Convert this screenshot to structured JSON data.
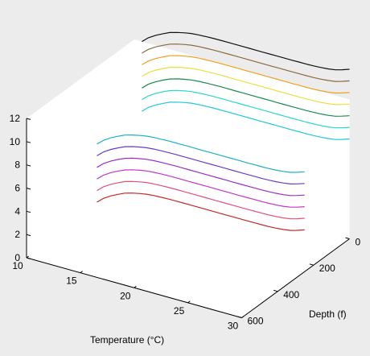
{
  "chart_data": {
    "type": "line",
    "projection": "3d",
    "title": "",
    "xlabel": "Temperature (°C)",
    "ylabel": "Depth (f)",
    "zlabel": "",
    "xlim": [
      10,
      30
    ],
    "ylim": [
      0,
      600
    ],
    "zlim": [
      0,
      12
    ],
    "x_ticks": [
      "10",
      "15",
      "20",
      "25",
      "30"
    ],
    "y_ticks": [
      "0",
      "200",
      "400",
      "600"
    ],
    "z_ticks": [
      "0",
      "2",
      "4",
      "6",
      "8",
      "10",
      "12"
    ],
    "grid": false,
    "x": [
      10.7,
      11.3,
      12,
      12.7,
      13.3,
      14,
      14.7,
      15.3,
      16,
      16.7,
      17.3,
      18,
      18.7,
      19.3,
      20,
      20.7,
      21.3,
      22,
      22.7,
      23.3,
      24,
      24.7,
      25.3,
      26,
      26.7,
      27.3,
      28,
      28.7,
      29.3,
      30
    ],
    "series": [
      {
        "color": "#c62828",
        "depth": 250,
        "values": [
          1.0,
          1.48,
          1.88,
          2.2,
          2.45,
          2.64,
          2.78,
          2.88,
          2.94,
          2.97,
          2.99,
          3.0,
          3.0,
          3.0,
          3.0,
          3.0,
          3.0,
          3.0,
          3.0,
          3.0,
          3.0,
          3.0,
          3.01,
          3.01,
          3.03,
          3.06,
          3.12,
          3.22,
          3.38,
          3.6
        ]
      },
      {
        "color": "#e0507a",
        "depth": 250,
        "values": [
          2.0,
          2.48,
          2.88,
          3.2,
          3.45,
          3.64,
          3.78,
          3.88,
          3.94,
          3.97,
          3.99,
          4.0,
          4.0,
          4.0,
          4.0,
          4.0,
          4.0,
          4.0,
          4.0,
          4.0,
          4.0,
          4.0,
          4.01,
          4.01,
          4.03,
          4.06,
          4.12,
          4.22,
          4.38,
          4.6
        ]
      },
      {
        "color": "#c238c2",
        "depth": 250,
        "values": [
          3.0,
          3.48,
          3.88,
          4.2,
          4.45,
          4.64,
          4.78,
          4.88,
          4.94,
          4.97,
          4.99,
          5.0,
          5.0,
          5.0,
          5.0,
          5.0,
          5.0,
          5.0,
          5.0,
          5.0,
          5.0,
          5.0,
          5.01,
          5.01,
          5.03,
          5.06,
          5.12,
          5.22,
          5.38,
          5.6
        ]
      },
      {
        "color": "#9a2ec8",
        "depth": 250,
        "values": [
          4.0,
          4.48,
          4.88,
          5.2,
          5.45,
          5.64,
          5.78,
          5.88,
          5.94,
          5.97,
          5.99,
          6.0,
          6.0,
          6.0,
          6.0,
          6.0,
          6.0,
          6.0,
          6.0,
          6.0,
          6.0,
          6.0,
          6.01,
          6.01,
          6.03,
          6.06,
          6.12,
          6.22,
          6.38,
          6.6
        ]
      },
      {
        "color": "#6a3cc8",
        "depth": 250,
        "values": [
          5.0,
          5.48,
          5.88,
          6.2,
          6.45,
          6.64,
          6.78,
          6.88,
          6.94,
          6.97,
          6.99,
          7.0,
          7.0,
          7.0,
          7.0,
          7.0,
          7.0,
          7.0,
          7.0,
          7.0,
          7.0,
          7.0,
          7.01,
          7.01,
          7.03,
          7.06,
          7.12,
          7.22,
          7.38,
          7.6
        ]
      },
      {
        "color": "#1cb0c8",
        "depth": 250,
        "values": [
          6.0,
          6.48,
          6.88,
          7.2,
          7.45,
          7.64,
          7.78,
          7.88,
          7.94,
          7.97,
          7.99,
          8.0,
          8.0,
          8.0,
          8.0,
          8.0,
          8.0,
          8.0,
          8.0,
          8.0,
          8.0,
          8.0,
          8.01,
          8.01,
          8.03,
          8.06,
          8.12,
          8.22,
          8.38,
          8.6
        ]
      },
      {
        "color": "#20c8d8",
        "depth": 0,
        "values": [
          6.0,
          6.48,
          6.88,
          7.2,
          7.45,
          7.64,
          7.78,
          7.88,
          7.94,
          7.97,
          7.99,
          8.0,
          8.0,
          8.0,
          8.0,
          8.0,
          8.0,
          8.0,
          8.0,
          8.0,
          8.0,
          8.0,
          8.01,
          8.01,
          8.03,
          8.06,
          8.12,
          8.22,
          8.38,
          8.6
        ]
      },
      {
        "color": "#28d8c8",
        "depth": 0,
        "values": [
          7.0,
          7.48,
          7.88,
          8.2,
          8.45,
          8.64,
          8.78,
          8.88,
          8.94,
          8.97,
          8.99,
          9.0,
          9.0,
          9.0,
          9.0,
          9.0,
          9.0,
          9.0,
          9.0,
          9.0,
          9.0,
          9.0,
          9.01,
          9.01,
          9.03,
          9.06,
          9.12,
          9.22,
          9.38,
          9.6
        ]
      },
      {
        "color": "#1a8a4a",
        "depth": 0,
        "values": [
          8.0,
          8.48,
          8.88,
          9.2,
          9.45,
          9.64,
          9.78,
          9.88,
          9.94,
          9.97,
          9.99,
          10.0,
          10.0,
          10.0,
          10.0,
          10.0,
          10.0,
          10.0,
          10.0,
          10.0,
          10.0,
          10.0,
          10.01,
          10.01,
          10.03,
          10.06,
          10.12,
          10.22,
          10.38,
          10.6
        ]
      },
      {
        "color": "#e8e040",
        "depth": 0,
        "values": [
          9.0,
          9.48,
          9.88,
          10.2,
          10.45,
          10.64,
          10.78,
          10.88,
          10.94,
          10.97,
          10.99,
          11.0,
          11.0,
          11.0,
          11.0,
          11.0,
          11.0,
          11.0,
          11.0,
          11.0,
          11.0,
          11.0,
          11.01,
          11.01,
          11.03,
          11.06,
          11.12,
          11.22,
          11.38,
          11.6
        ]
      },
      {
        "color": "#f0a020",
        "depth": 0,
        "values": [
          10.0,
          10.48,
          10.88,
          11.2,
          11.45,
          11.64,
          11.78,
          11.88,
          11.94,
          11.97,
          11.99,
          12.0,
          12.0,
          12.0,
          12.0,
          12.0,
          12.0,
          12.0,
          12.0,
          12.0,
          12.0,
          12.0,
          12.01,
          12.01,
          12.03,
          12.06,
          12.12,
          12.22,
          12.38,
          12.6
        ]
      },
      {
        "color": "#8a6a40",
        "depth": 0,
        "values": [
          11.0,
          11.48,
          11.88,
          12.2,
          12.45,
          12.64,
          12.78,
          12.88,
          12.94,
          12.97,
          12.99,
          13.0,
          13.0,
          13.0,
          13.0,
          13.0,
          13.0,
          13.0,
          13.0,
          13.0,
          13.0,
          13.0,
          13.01,
          13.01,
          13.03,
          13.06,
          13.12,
          13.22,
          13.38,
          13.6
        ]
      },
      {
        "color": "#111111",
        "depth": 0,
        "values": [
          12.0,
          12.48,
          12.88,
          13.2,
          13.45,
          13.64,
          13.78,
          13.88,
          13.94,
          13.97,
          13.99,
          14.0,
          14.0,
          14.0,
          14.0,
          14.0,
          14.0,
          14.0,
          14.0,
          14.0,
          14.0,
          14.0,
          14.01,
          14.01,
          14.03,
          14.06,
          14.12,
          14.22,
          14.38,
          14.6
        ]
      }
    ],
    "colors": {
      "background": "#ececec",
      "axes_face": "#ffffff",
      "axes_line": "#000000"
    }
  }
}
